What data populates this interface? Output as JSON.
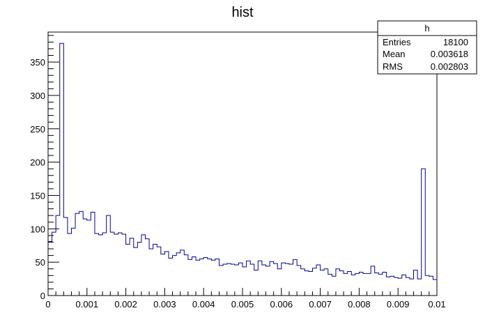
{
  "chart_data": {
    "type": "histogram",
    "title": "hist",
    "xlabel": "",
    "ylabel": "",
    "xlim": [
      0,
      0.01
    ],
    "ylim": [
      0,
      395
    ],
    "x_ticks": [
      "0",
      "0.001",
      "0.002",
      "0.003",
      "0.004",
      "0.005",
      "0.006",
      "0.007",
      "0.008",
      "0.009",
      "0.01"
    ],
    "y_ticks": [
      "0",
      "50",
      "100",
      "150",
      "200",
      "250",
      "300",
      "350"
    ],
    "bins": 100,
    "line_color": "#000099",
    "values": [
      81,
      95,
      120,
      378,
      117,
      93,
      101,
      123,
      126,
      115,
      113,
      125,
      93,
      91,
      94,
      120,
      95,
      92,
      94,
      92,
      77,
      86,
      72,
      80,
      91,
      85,
      70,
      77,
      73,
      62,
      66,
      56,
      60,
      64,
      68,
      61,
      54,
      58,
      53,
      55,
      57,
      55,
      53,
      55,
      45,
      47,
      48,
      47,
      46,
      49,
      43,
      52,
      47,
      38,
      52,
      46,
      44,
      51,
      48,
      40,
      49,
      48,
      47,
      54,
      45,
      40,
      37,
      36,
      41,
      46,
      38,
      40,
      32,
      29,
      40,
      37,
      33,
      36,
      31,
      33,
      35,
      33,
      33,
      44,
      34,
      32,
      35,
      28,
      29,
      27,
      26,
      31,
      27,
      25,
      38,
      25,
      190,
      30,
      29,
      24
    ]
  },
  "stats": {
    "name": "h",
    "rows": [
      {
        "label": "Entries",
        "value": "18100"
      },
      {
        "label": "Mean",
        "value": "0.003618"
      },
      {
        "label": "RMS",
        "value": "0.002803"
      }
    ]
  }
}
